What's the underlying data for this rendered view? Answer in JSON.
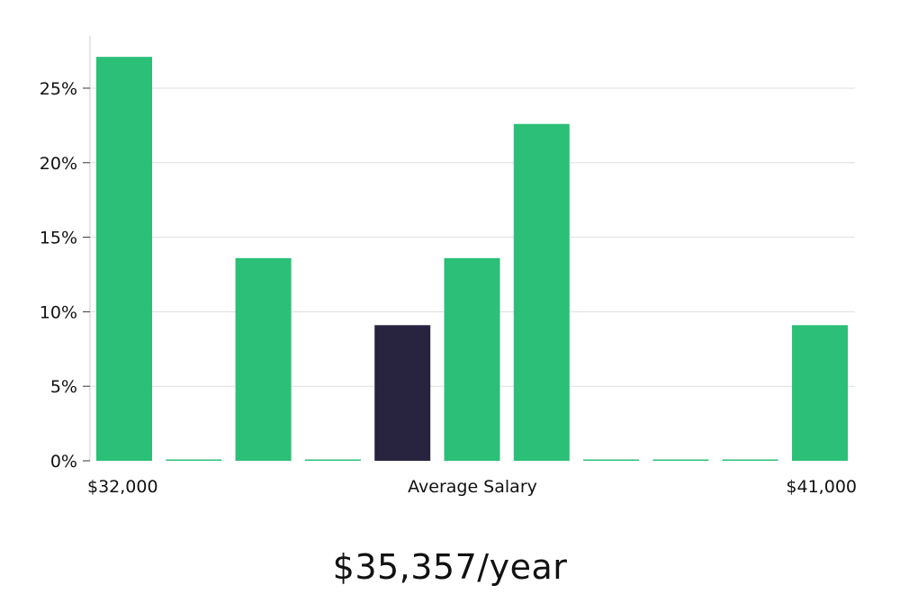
{
  "chart_data": {
    "type": "bar",
    "categories": [
      "1",
      "2",
      "3",
      "4",
      "5",
      "6",
      "7",
      "8",
      "9",
      "10",
      "11"
    ],
    "values": [
      27.1,
      0,
      13.6,
      0,
      9.1,
      13.6,
      22.6,
      0,
      0,
      0,
      9.1
    ],
    "highlight_index": 4,
    "ylim": [
      0,
      28.5
    ],
    "yticks": [
      0,
      5,
      10,
      15,
      20,
      25
    ],
    "ytick_labels": [
      "0%",
      "5%",
      "10%",
      "15%",
      "20%",
      "25%"
    ],
    "x_min_label": "$32,000",
    "x_center_label": "Average Salary",
    "x_max_label": "$41,000",
    "grid": true,
    "colors": {
      "bar": "#2bbf77",
      "highlight": "#28243f",
      "grid": "#dddddd",
      "axis": "#cccccc"
    }
  },
  "summary": {
    "average_salary": "$35,357/year"
  }
}
